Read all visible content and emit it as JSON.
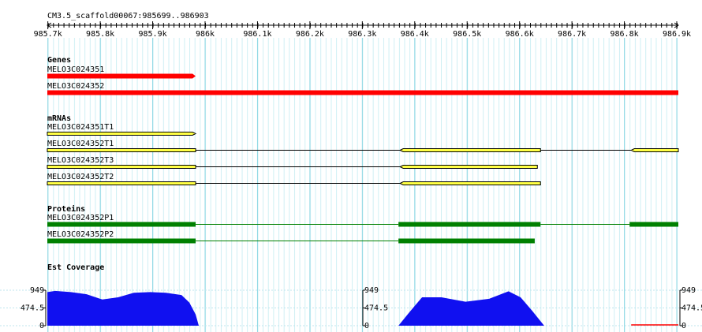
{
  "ruler": {
    "title": "CM3.5_scaffold00067:985699..986903",
    "range": [
      985699,
      986903
    ],
    "ticks": [
      {
        "value": 985700,
        "label": "985.7k"
      },
      {
        "value": 985800,
        "label": "985.8k"
      },
      {
        "value": 985900,
        "label": "985.9k"
      },
      {
        "value": 986000,
        "label": "986k"
      },
      {
        "value": 986100,
        "label": "986.1k"
      },
      {
        "value": 986200,
        "label": "986.2k"
      },
      {
        "value": 986300,
        "label": "986.3k"
      },
      {
        "value": 986400,
        "label": "986.4k"
      },
      {
        "value": 986500,
        "label": "986.5k"
      },
      {
        "value": 986600,
        "label": "986.6k"
      },
      {
        "value": 986700,
        "label": "986.7k"
      },
      {
        "value": 986800,
        "label": "986.8k"
      },
      {
        "value": 986900,
        "label": "986.9k"
      }
    ]
  },
  "tracks": [
    {
      "label": "Genes",
      "style": "gene",
      "color": "#ff0000",
      "features": [
        {
          "name": "MELO3C024351",
          "strand": "+",
          "segments": [
            [
              985699,
              985982
            ]
          ]
        },
        {
          "name": "MELO3C024352",
          "strand": "-",
          "segments": [
            [
              985699,
              986903
            ]
          ]
        }
      ]
    },
    {
      "label": "mRNAs",
      "style": "mrna",
      "color": "#ffff44",
      "features": [
        {
          "name": "MELO3C024351T1",
          "strand": "+",
          "segments": [
            [
              985699,
              985982
            ]
          ]
        },
        {
          "name": "MELO3C024352T1",
          "strand": "-",
          "segments": [
            [
              985699,
              985982
            ],
            [
              986372,
              986640
            ],
            [
              986813,
              986903
            ]
          ]
        },
        {
          "name": "MELO3C024352T3",
          "strand": "-",
          "segments": [
            [
              985699,
              985982
            ],
            [
              986372,
              986634
            ]
          ]
        },
        {
          "name": "MELO3C024352T2",
          "strand": "-",
          "segments": [
            [
              985699,
              985982
            ],
            [
              986372,
              986640
            ]
          ]
        }
      ]
    },
    {
      "label": "Proteins",
      "style": "protein",
      "color": "#008000",
      "features": [
        {
          "name": "MELO3C024352P1",
          "strand": "-",
          "segments": [
            [
              985699,
              985982
            ],
            [
              986369,
              986640
            ],
            [
              986810,
              986903
            ]
          ]
        },
        {
          "name": "MELO3C024352P2",
          "strand": "-",
          "segments": [
            [
              985699,
              985982
            ],
            [
              986369,
              986629
            ]
          ]
        }
      ]
    }
  ],
  "coverage": {
    "label": "Est Coverage",
    "ylim": [
      0,
      949
    ],
    "yticks": [
      0,
      474.5,
      949
    ],
    "panels": [
      {
        "color": "#1010f0",
        "x": [
          985699,
          985714,
          985744,
          985774,
          985804,
          985834,
          985864,
          985895,
          985925,
          985955,
          985970,
          985982,
          985988
        ],
        "values": [
          900,
          930,
          900,
          840,
          700,
          760,
          880,
          900,
          880,
          820,
          620,
          300,
          0
        ]
      },
      {
        "color": "#1010f0",
        "x": [
          986369,
          986391,
          986414,
          986451,
          986497,
          986542,
          986579,
          986602,
          986624,
          986647
        ],
        "values": [
          0,
          380,
          760,
          760,
          640,
          720,
          920,
          760,
          400,
          0
        ]
      },
      {
        "color": "#ff0000",
        "x": [
          986813,
          986903
        ],
        "values": [
          0,
          0
        ]
      }
    ]
  }
}
